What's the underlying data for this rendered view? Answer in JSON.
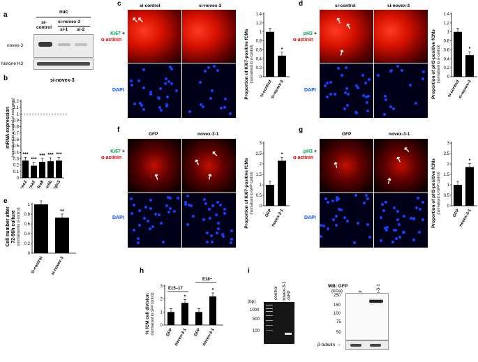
{
  "panels": {
    "a": "a",
    "b": "b",
    "c": "c",
    "d": "d",
    "e": "e",
    "f": "f",
    "g": "g",
    "h": "h",
    "i": "i"
  },
  "a": {
    "nuc": "nuc",
    "si_control": "si-\ncontrol",
    "si_novex": "si-novex-3",
    "si1": "si-1",
    "si2": "si-2",
    "novex": "novex-3",
    "histone": "histone H3"
  },
  "b": {
    "title": "si-novex-3",
    "ylabel": "mRNA expression",
    "ylabel2": "(normalised to si-control of each gene)"
  },
  "e": {
    "ylabel": "Cell number after",
    "ylabel2": "72-96h culture",
    "ylabel3": "(normalised to si-control)"
  },
  "c": {
    "col1": "si-control",
    "col2": "si-novex-3",
    "marker1": "Ki67",
    "plus": " +",
    "marker2": "α-actinin",
    "dapi": "DAPI",
    "ylabel": "Proportion of Ki67-positive fCMs",
    "ylabel2": "(normalised to si-control)"
  },
  "d": {
    "col1": "si-control",
    "col2": "si-novex-3",
    "marker1": "pH3",
    "plus": " +",
    "marker2": "α-actinin",
    "dapi": "DAPI",
    "ylabel": "Proportion of pH3-positive fCMs",
    "ylabel2": "(normalised to si-control)"
  },
  "f": {
    "col1": "GFP",
    "col2": "novex-3-1",
    "marker1": "Ki67",
    "plus": " +",
    "marker2": "α-actinin",
    "dapi": "DAPI",
    "ylabel": "Proportion of Ki67-positive fCMs",
    "ylabel2": "(normalised to GFP control)"
  },
  "g": {
    "col1": "GFP",
    "col2": "novex-3-1",
    "marker1": "pH3",
    "plus": " +",
    "marker2": "α-actinin",
    "dapi": "DAPI",
    "ylabel": "Proportion of pH3-positive fCMs",
    "ylabel2": "(normalised to GFP control)"
  },
  "h": {
    "ylabel": "% fCM cell division",
    "ylabel2": "(normalised to GFP control)",
    "g1": "E15–17",
    "g2": "E18~"
  },
  "i": {
    "bp": "(bp)",
    "lane1": "control",
    "lane2": "novex-3-1\n-GFP",
    "wb": "WB: GFP",
    "kda": "(kDa)",
    "wblane1": "control",
    "wblane2": "novex-3-1\n-GFP",
    "tubulin": "β-tubulin"
  },
  "colors": {
    "ki67": "#00a651",
    "ph3": "#00a651",
    "actinin": "#e00000",
    "dapi": "#0050ff"
  },
  "chart_data": [
    {
      "panel": "b",
      "type": "bar",
      "categories": [
        "Ccne2",
        "Ccna2",
        "Cdca8",
        "Aurkb",
        "Egln3"
      ],
      "values": [
        0.27,
        0.19,
        0.25,
        0.26,
        0.27
      ],
      "ylim": [
        0,
        1.2
      ],
      "yticks": [
        0,
        0.1,
        0.2,
        0.3,
        0.4,
        0.5,
        0.6,
        0.7,
        0.8,
        0.9,
        1,
        1.1,
        1.2
      ],
      "annotations": [
        "***",
        "***",
        "***",
        "***",
        "***"
      ]
    },
    {
      "panel": "e",
      "type": "bar",
      "categories": [
        "si-control",
        "si-novex-3"
      ],
      "values": [
        1.0,
        0.73
      ],
      "ylim": [
        0,
        1
      ],
      "yticks": [
        0,
        0.2,
        0.4,
        0.6,
        0.8,
        1
      ],
      "annotations": [
        "",
        "**"
      ]
    },
    {
      "panel": "c",
      "type": "bar",
      "categories": [
        "si-control",
        "si-novex-3"
      ],
      "values": [
        1.0,
        0.47
      ],
      "ylim": [
        0,
        1.4
      ],
      "yticks": [
        0,
        0.2,
        0.4,
        0.6,
        0.8,
        1,
        1.2,
        1.4
      ],
      "annotations": [
        "",
        "*"
      ]
    },
    {
      "panel": "d",
      "type": "bar",
      "categories": [
        "si-control",
        "si-novex-3"
      ],
      "values": [
        1.0,
        0.48
      ],
      "ylim": [
        0,
        1.4
      ],
      "yticks": [
        0,
        0.2,
        0.4,
        0.6,
        0.8,
        1,
        1.2,
        1.4
      ],
      "annotations": [
        "",
        "*"
      ]
    },
    {
      "panel": "f",
      "type": "bar",
      "categories": [
        "GFP",
        "novex-3-1"
      ],
      "values": [
        1.0,
        2.15
      ],
      "ylim": [
        0,
        3
      ],
      "yticks": [
        0,
        0.5,
        1,
        1.5,
        2,
        2.5,
        3
      ],
      "annotations": [
        "",
        "*"
      ]
    },
    {
      "panel": "g",
      "type": "bar",
      "categories": [
        "GFP",
        "novex-3-1"
      ],
      "values": [
        1.0,
        1.85
      ],
      "ylim": [
        0,
        3
      ],
      "yticks": [
        0,
        0.5,
        1,
        1.5,
        2,
        2.5,
        3
      ],
      "annotations": [
        "",
        "*"
      ]
    },
    {
      "panel": "h",
      "type": "bar",
      "categories": [
        "GFP",
        "novex-3-1",
        "GFP",
        "novex-3-1"
      ],
      "values": [
        1.0,
        1.7,
        1.0,
        2.2
      ],
      "ylim": [
        0,
        3
      ],
      "yticks": [
        0,
        1,
        2,
        3
      ],
      "annotations": [
        "",
        "*",
        "",
        "*"
      ]
    }
  ],
  "gel": {
    "markers": [
      "1000",
      "500",
      "100"
    ]
  },
  "wb": {
    "markers": [
      "250",
      "150",
      "100",
      "75",
      "50"
    ]
  }
}
